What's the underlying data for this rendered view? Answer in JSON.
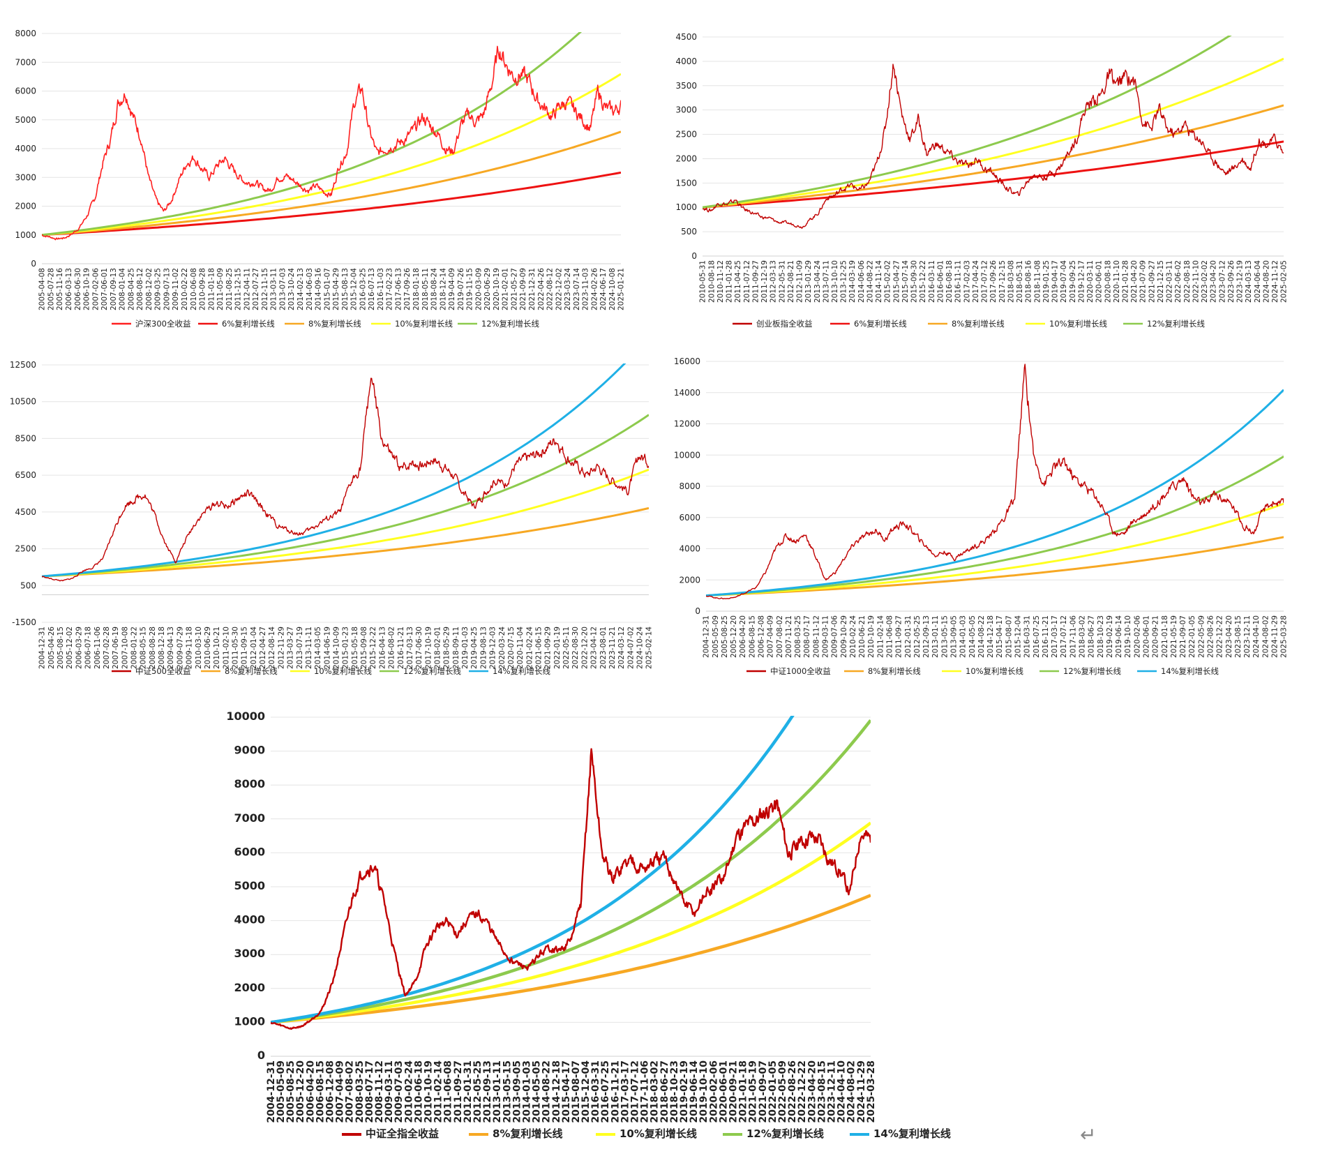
{
  "chart_data": [
    {
      "type": "line",
      "ylim": [
        0,
        8000
      ],
      "yticks": [
        "0",
        "1000",
        "2000",
        "3000",
        "4000",
        "5000",
        "6000",
        "7000",
        "8000"
      ],
      "xticks": [
        "2005-04-08",
        "2005-07-28",
        "2005-11-16",
        "2006-03-13",
        "2006-06-30",
        "2006-10-19",
        "2007-02-06",
        "2007-06-01",
        "2007-09-13",
        "2008-01-04",
        "2008-04-25",
        "2008-08-12",
        "2008-12-02",
        "2009-03-25",
        "2009-07-13",
        "2009-11-02",
        "2010-02-22",
        "2010-06-08",
        "2010-09-28",
        "2011-01-18",
        "2011-05-09",
        "2011-08-25",
        "2011-12-15",
        "2012-04-11",
        "2012-07-27",
        "2012-11-15",
        "2013-03-11",
        "2013-07-03",
        "2013-10-24",
        "2014-02-13",
        "2014-06-03",
        "2014-09-16",
        "2015-01-07",
        "2015-04-29",
        "2015-08-13",
        "2015-12-04",
        "2016-03-25",
        "2016-07-13",
        "2016-11-03",
        "2017-02-23",
        "2017-06-13",
        "2017-09-26",
        "2018-01-18",
        "2018-05-11",
        "2018-08-24",
        "2018-12-14",
        "2019-04-09",
        "2019-07-26",
        "2019-11-15",
        "2020-03-09",
        "2020-06-29",
        "2020-10-19",
        "2021-02-01",
        "2021-05-27",
        "2021-09-09",
        "2021-12-31",
        "2022-04-26",
        "2022-08-12",
        "2022-12-02",
        "2023-03-24",
        "2023-07-14",
        "2023-11-03",
        "2024-02-26",
        "2024-06-17",
        "2024-10-08",
        "2025-01-21"
      ],
      "series": [
        {
          "name": "沪深300全收益",
          "color": "#ff2020",
          "values": [
            1000,
            935,
            860,
            900,
            1040,
            1280,
            1700,
            2300,
            3500,
            4300,
            5600,
            6000,
            5100,
            4400,
            3000,
            2200,
            1800,
            2200,
            2900,
            3500,
            3700,
            3300,
            3000,
            3400,
            3650,
            3300,
            3000,
            2800,
            2850,
            2600,
            2550,
            3000,
            3050,
            2900,
            2700,
            2550,
            2700,
            2500,
            2400,
            3400,
            3900,
            5600,
            6100,
            4600,
            3800,
            4000,
            4100,
            4200,
            4400,
            4700,
            5100,
            4800,
            4500,
            4000,
            3900,
            4800,
            5200,
            4900,
            5200,
            6200,
            7500,
            6900,
            6500,
            6600,
            6300,
            5700,
            5400,
            5100,
            5500,
            5600,
            5300,
            5000,
            4700,
            6000,
            5400,
            5300,
            5500
          ]
        },
        {
          "name": "6%复利增长线",
          "color": "#ee1111",
          "growth": 0.06,
          "start": 1000
        },
        {
          "name": "8%复利增长线",
          "color": "#f7a823",
          "growth": 0.08,
          "start": 1000
        },
        {
          "name": "10%复利增长线",
          "color": "#ffff20",
          "growth": 0.1,
          "start": 1000
        },
        {
          "name": "12%复利增长线",
          "color": "#8dca4d",
          "growth": 0.12,
          "start": 1000
        }
      ]
    },
    {
      "type": "line",
      "ylim": [
        0,
        4500
      ],
      "yticks": [
        "0",
        "500",
        "1000",
        "1500",
        "2000",
        "2500",
        "3000",
        "3500",
        "4000",
        "4500"
      ],
      "xticks": [
        "2010-05-31",
        "2010-08-18",
        "2010-11-12",
        "2011-01-28",
        "2011-04-25",
        "2011-07-12",
        "2011-09-27",
        "2011-12-19",
        "2012-03-13",
        "2012-05-31",
        "2012-08-21",
        "2012-11-09",
        "2013-01-29",
        "2013-04-24",
        "2013-07-11",
        "2013-10-10",
        "2013-12-25",
        "2014-03-19",
        "2014-06-06",
        "2014-08-22",
        "2014-11-14",
        "2015-02-02",
        "2015-04-27",
        "2015-07-14",
        "2015-09-30",
        "2015-12-22",
        "2016-03-11",
        "2016-06-01",
        "2016-08-18",
        "2016-11-11",
        "2017-02-03",
        "2017-04-24",
        "2017-07-12",
        "2017-09-26",
        "2017-12-15",
        "2018-03-08",
        "2018-05-31",
        "2018-08-16",
        "2018-11-08",
        "2019-01-25",
        "2019-04-17",
        "2019-07-04",
        "2019-09-25",
        "2019-12-17",
        "2020-03-11",
        "2020-06-01",
        "2020-08-18",
        "2020-11-10",
        "2021-01-28",
        "2021-04-20",
        "2021-07-09",
        "2021-09-27",
        "2021-12-15",
        "2022-03-11",
        "2022-06-02",
        "2022-08-18",
        "2022-11-10",
        "2023-02-02",
        "2023-04-20",
        "2023-07-12",
        "2023-09-26",
        "2023-12-19",
        "2024-03-13",
        "2024-06-04",
        "2024-08-20",
        "2024-11-12",
        "2025-02-05"
      ],
      "series": [
        {
          "name": "创业板指全收益",
          "color": "#c00000",
          "values": [
            1000,
            930,
            1100,
            1050,
            1150,
            950,
            900,
            800,
            780,
            700,
            680,
            650,
            600,
            750,
            900,
            1200,
            1250,
            1400,
            1450,
            1350,
            1500,
            1900,
            2600,
            4000,
            2900,
            2400,
            2800,
            2100,
            2300,
            2200,
            2050,
            1900,
            1850,
            2000,
            1800,
            1700,
            1500,
            1350,
            1250,
            1500,
            1700,
            1600,
            1700,
            1800,
            2100,
            2400,
            3000,
            3200,
            3300,
            3700,
            3500,
            3700,
            3600,
            2800,
            2600,
            3000,
            2600,
            2500,
            2700,
            2500,
            2400,
            2100,
            1900,
            1700,
            1800,
            2000,
            1800,
            2400,
            2300,
            2400,
            2100
          ]
        },
        {
          "name": "6%复利增长线",
          "color": "#ee1111",
          "growth": 0.06,
          "start": 1000
        },
        {
          "name": "8%复利增长线",
          "color": "#f7a823",
          "growth": 0.08,
          "start": 1000
        },
        {
          "name": "10%复利增长线",
          "color": "#ffff20",
          "growth": 0.1,
          "start": 1000
        },
        {
          "name": "12%复利增长线",
          "color": "#8dca4d",
          "growth": 0.12,
          "start": 1000
        }
      ]
    },
    {
      "type": "line",
      "ylim": [
        -1500,
        12500
      ],
      "yticks": [
        "-1500",
        "500",
        "2500",
        "4500",
        "6500",
        "8500",
        "10500",
        "12500"
      ],
      "xticks": [
        "2004-12-31",
        "2005-04-26",
        "2005-08-15",
        "2005-12-02",
        "2006-03-29",
        "2006-07-18",
        "2006-11-06",
        "2007-02-28",
        "2007-06-19",
        "2007-10-08",
        "2008-01-22",
        "2008-05-15",
        "2008-08-28",
        "2008-12-18",
        "2009-04-13",
        "2009-07-29",
        "2009-11-18",
        "2010-03-10",
        "2010-06-29",
        "2010-10-21",
        "2011-02-10",
        "2011-05-30",
        "2011-09-15",
        "2012-01-04",
        "2012-04-27",
        "2012-08-14",
        "2012-11-29",
        "2013-03-27",
        "2013-07-19",
        "2013-11-11",
        "2014-03-05",
        "2014-06-19",
        "2014-10-09",
        "2015-01-23",
        "2015-05-18",
        "2015-09-08",
        "2015-12-22",
        "2016-04-13",
        "2016-08-02",
        "2016-11-21",
        "2017-03-13",
        "2017-06-30",
        "2017-10-19",
        "2018-02-01",
        "2018-05-29",
        "2018-09-11",
        "2019-01-03",
        "2019-04-25",
        "2019-08-13",
        "2019-12-03",
        "2020-03-24",
        "2020-07-15",
        "2020-11-04",
        "2021-02-24",
        "2021-06-15",
        "2021-09-29",
        "2022-01-19",
        "2022-05-11",
        "2022-08-30",
        "2022-12-20",
        "2023-04-12",
        "2023-08-01",
        "2023-11-21",
        "2024-03-12",
        "2024-07-02",
        "2024-10-24",
        "2025-02-14"
      ],
      "series": [
        {
          "name": "中证500全收益",
          "color": "#c00000",
          "values": [
            1000,
            850,
            750,
            900,
            1300,
            1500,
            2000,
            3500,
            4800,
            5200,
            5500,
            4300,
            2800,
            1800,
            3000,
            4000,
            4600,
            5000,
            4800,
            5200,
            5500,
            5000,
            4300,
            3700,
            3500,
            3300,
            3500,
            3900,
            4200,
            4500,
            6000,
            7000,
            12000,
            8500,
            7500,
            6800,
            7200,
            7000,
            7400,
            7000,
            6500,
            5500,
            4800,
            5500,
            6200,
            6000,
            7000,
            7400,
            7600,
            8000,
            8500,
            7500,
            7000,
            6500,
            7000,
            6400,
            6000,
            5600,
            7600,
            7200
          ]
        },
        {
          "name": "8%复利增长线",
          "color": "#f7a823",
          "growth": 0.08,
          "start": 1000
        },
        {
          "name": "10%复利增长线",
          "color": "#ffff20",
          "growth": 0.1,
          "start": 1000
        },
        {
          "name": "12%复利增长线",
          "color": "#8dca4d",
          "growth": 0.12,
          "start": 1000
        },
        {
          "name": "14%复利增长线",
          "color": "#1fb0e6",
          "growth": 0.14,
          "start": 1000
        }
      ]
    },
    {
      "type": "line",
      "ylim": [
        0,
        16000
      ],
      "yticks": [
        "0",
        "2000",
        "4000",
        "6000",
        "8000",
        "10000",
        "12000",
        "14000",
        "16000"
      ],
      "xticks": [
        "2004-12-31",
        "2005-05-09",
        "2005-08-25",
        "2005-12-20",
        "2006-04-20",
        "2006-08-15",
        "2006-12-08",
        "2007-04-09",
        "2007-08-02",
        "2007-11-21",
        "2008-03-25",
        "2008-07-17",
        "2008-11-12",
        "2009-03-11",
        "2009-07-06",
        "2009-10-29",
        "2010-02-24",
        "2010-06-21",
        "2010-10-19",
        "2011-02-14",
        "2011-06-08",
        "2011-09-27",
        "2012-01-31",
        "2012-05-25",
        "2012-09-13",
        "2013-01-11",
        "2013-05-15",
        "2013-09-05",
        "2014-01-03",
        "2014-05-05",
        "2014-08-22",
        "2014-12-18",
        "2015-04-17",
        "2015-08-07",
        "2015-12-04",
        "2016-03-31",
        "2016-07-25",
        "2016-11-21",
        "2017-03-17",
        "2017-07-12",
        "2017-11-06",
        "2018-03-02",
        "2018-06-27",
        "2018-10-23",
        "2019-02-19",
        "2019-06-14",
        "2019-10-10",
        "2020-02-06",
        "2020-06-01",
        "2020-09-21",
        "2021-01-18",
        "2021-05-19",
        "2021-09-07",
        "2022-01-05",
        "2022-05-09",
        "2022-08-26",
        "2022-12-22",
        "2023-04-20",
        "2023-08-15",
        "2023-12-11",
        "2024-04-10",
        "2024-08-02",
        "2024-11-29",
        "2025-03-28"
      ],
      "series": [
        {
          "name": "中证1000全收益",
          "color": "#c00000",
          "values": [
            1000,
            850,
            800,
            900,
            1200,
            1500,
            2500,
            4000,
            4800,
            4500,
            4900,
            3500,
            2000,
            2500,
            3500,
            4400,
            4800,
            5200,
            4600,
            5400,
            5600,
            4900,
            4200,
            3600,
            3800,
            3400,
            3800,
            4200,
            4500,
            5200,
            6000,
            7200,
            15500,
            9500,
            8200,
            9200,
            9500,
            8500,
            8000,
            7500,
            6500,
            5000,
            5000,
            5800,
            6200,
            6800,
            7500,
            8000,
            8500,
            7200,
            6800,
            7500,
            7200,
            6600,
            5500,
            5000,
            6500,
            7000,
            6800
          ]
        },
        {
          "name": "8%复利增长线",
          "color": "#f7a823",
          "growth": 0.08,
          "start": 1000
        },
        {
          "name": "10%复利增长线",
          "color": "#ffff20",
          "growth": 0.1,
          "start": 1000
        },
        {
          "name": "12%复利增长线",
          "color": "#8dca4d",
          "growth": 0.12,
          "start": 1000
        },
        {
          "name": "14%复利增长线",
          "color": "#1fb0e6",
          "growth": 0.14,
          "start": 1000
        }
      ]
    },
    {
      "type": "line",
      "ylim": [
        0,
        10000
      ],
      "yticks": [
        "0",
        "1000",
        "2000",
        "3000",
        "4000",
        "5000",
        "6000",
        "7000",
        "8000",
        "9000",
        "10000"
      ],
      "xticks": [
        "2004-12-31",
        "2005-05-09",
        "2005-08-25",
        "2005-12-20",
        "2006-04-20",
        "2006-08-15",
        "2006-12-08",
        "2007-04-09",
        "2007-08-02",
        "2008-03-25",
        "2008-07-17",
        "2008-11-12",
        "2009-03-11",
        "2009-07-03",
        "2010-02-24",
        "2010-06-18",
        "2010-10-19",
        "2011-02-14",
        "2011-06-08",
        "2011-09-27",
        "2012-01-31",
        "2012-05-25",
        "2012-09-13",
        "2013-01-11",
        "2013-05-15",
        "2013-09-05",
        "2014-01-03",
        "2014-05-05",
        "2014-08-22",
        "2014-12-18",
        "2015-04-17",
        "2015-08-07",
        "2015-12-04",
        "2016-03-31",
        "2016-07-25",
        "2016-11-21",
        "2017-03-17",
        "2017-07-12",
        "2017-11-06",
        "2018-03-02",
        "2018-06-27",
        "2018-10-23",
        "2019-02-19",
        "2019-06-14",
        "2019-10-10",
        "2020-02-06",
        "2020-06-01",
        "2020-09-21",
        "2021-01-18",
        "2021-05-19",
        "2021-09-07",
        "2022-01-05",
        "2022-05-09",
        "2022-08-26",
        "2022-12-22",
        "2023-04-20",
        "2023-08-15",
        "2023-12-11",
        "2024-04-10",
        "2024-08-02",
        "2024-11-29",
        "2025-03-28"
      ],
      "series": [
        {
          "name": "中证全指全收益",
          "color": "#c00000",
          "values": [
            1000,
            900,
            820,
            880,
            1100,
            1400,
            2200,
            3500,
            4800,
            5500,
            5600,
            4500,
            3000,
            1800,
            2200,
            3200,
            3800,
            4000,
            3600,
            4000,
            4200,
            3900,
            3300,
            2900,
            2700,
            2600,
            3000,
            3200,
            3100,
            3400,
            4500,
            9000,
            6000,
            5200,
            5600,
            5800,
            5500,
            5700,
            5800,
            5200,
            4500,
            4200,
            4800,
            5000,
            5400,
            6500,
            6800,
            7000,
            7300,
            7400,
            6000,
            6200,
            6500,
            6400,
            5800,
            5500,
            4800,
            6600,
            6400
          ]
        },
        {
          "name": "8%复利增长线",
          "color": "#f7a823",
          "growth": 0.08,
          "start": 1000
        },
        {
          "name": "10%复利增长线",
          "color": "#ffff20",
          "growth": 0.1,
          "start": 1000
        },
        {
          "name": "12%复利增长线",
          "color": "#8dca4d",
          "growth": 0.12,
          "start": 1000
        },
        {
          "name": "14%复利增长线",
          "color": "#1fb0e6",
          "growth": 0.14,
          "start": 1000
        }
      ]
    }
  ],
  "decorations": {
    "return_glyph": "↵"
  }
}
